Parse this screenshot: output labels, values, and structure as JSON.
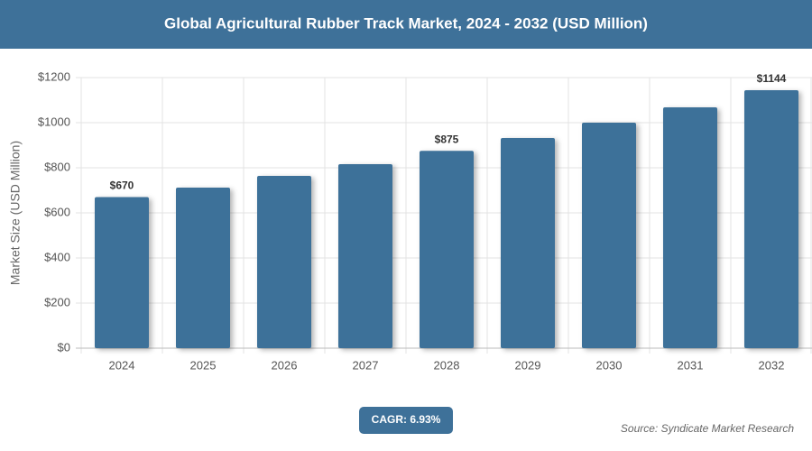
{
  "chart_data": {
    "type": "bar",
    "title": "Global Agricultural Rubber Track Market, 2024 - 2032 (USD Million)",
    "y_label": "Market Size (USD Million)",
    "categories": [
      "2024",
      "2025",
      "2026",
      "2027",
      "2028",
      "2029",
      "2030",
      "2031",
      "2032"
    ],
    "values": [
      670,
      712,
      764,
      816,
      875,
      932,
      1000,
      1068,
      1144
    ],
    "value_labels": [
      "$670",
      null,
      null,
      null,
      "$875",
      null,
      null,
      null,
      "$1144"
    ],
    "color": "#3e7199",
    "ylim": [
      0,
      1200
    ],
    "yticks": [
      {
        "value": 0,
        "label": "$0"
      },
      {
        "value": 200,
        "label": "$200"
      },
      {
        "value": 400,
        "label": "$400"
      },
      {
        "value": 600,
        "label": "$600"
      },
      {
        "value": 800,
        "label": "$800"
      },
      {
        "value": 1000,
        "label": "$1000"
      },
      {
        "value": 1200,
        "label": "$1200"
      }
    ],
    "grid": true,
    "cagr_label": "CAGR: 6.93%",
    "source": "Source: Syndicate Market Research"
  }
}
